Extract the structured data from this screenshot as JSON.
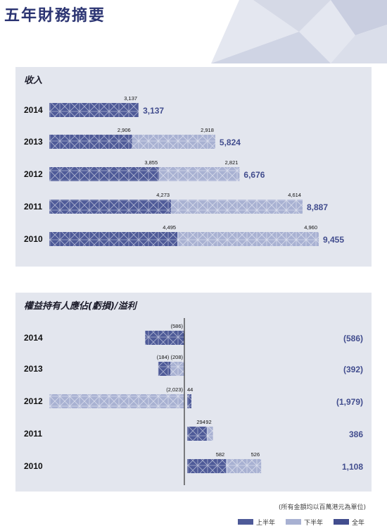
{
  "title": "五年財務摘要",
  "colors": {
    "h1": "#4e5a98",
    "h2": "#a8b1d2",
    "total": "#424d8e",
    "year_text": "#111111",
    "panel_bg": "#e3e6ee",
    "axis": "#333333"
  },
  "footer_note": "(所有金額均以百萬港元為單位)",
  "legend": [
    {
      "label": "上半年",
      "series": "h1"
    },
    {
      "label": "下半年",
      "series": "h2"
    },
    {
      "label": "全年",
      "series": "total"
    }
  ],
  "chart_data": [
    {
      "type": "bar",
      "stacked": true,
      "orientation": "horizontal",
      "title": "收入",
      "categories": [
        "2014",
        "2013",
        "2012",
        "2011",
        "2010"
      ],
      "series": [
        {
          "name": "上半年",
          "values": [
            3137,
            2906,
            3855,
            4273,
            4495
          ],
          "labels": [
            "3,137",
            "2,906",
            "3,855",
            "4,273",
            "4,495"
          ]
        },
        {
          "name": "下半年",
          "values": [
            null,
            2918,
            2821,
            4614,
            4960
          ],
          "labels": [
            "",
            "2,918",
            "2,821",
            "4,614",
            "4,960"
          ]
        }
      ],
      "totals": [
        3137,
        5824,
        6676,
        8887,
        9455
      ],
      "total_labels": [
        "3,137",
        "5,824",
        "6,676",
        "8,887",
        "9,455"
      ],
      "xlim": [
        0,
        10000
      ]
    },
    {
      "type": "bar",
      "orientation": "horizontal",
      "title": "權益持有人應佔(虧損)/溢利",
      "categories": [
        "2014",
        "2013",
        "2012",
        "2011",
        "2010"
      ],
      "series": [
        {
          "name": "上半年",
          "values": [
            -586,
            -184,
            -2023,
            294,
            582
          ],
          "labels": [
            "(586)",
            "(184)",
            "(2,023)",
            "294",
            "582"
          ]
        },
        {
          "name": "下半年",
          "values": [
            null,
            -208,
            44,
            92,
            526
          ],
          "labels": [
            "",
            "(208)",
            "44",
            "92",
            "526"
          ]
        }
      ],
      "totals": [
        -586,
        -392,
        -1979,
        386,
        1108
      ],
      "total_labels": [
        "(586)",
        "(392)",
        "(1,979)",
        "386",
        "1,108"
      ]
    }
  ]
}
